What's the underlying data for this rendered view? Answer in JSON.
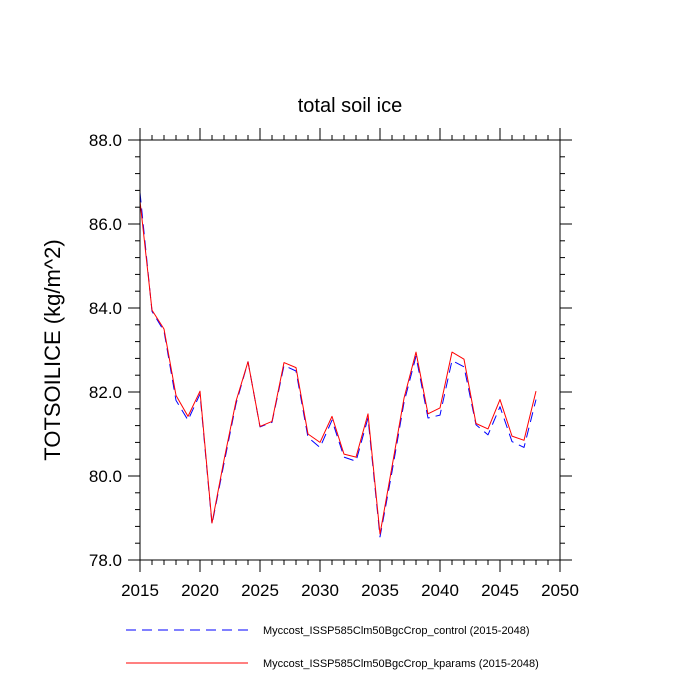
{
  "chart_data": {
    "type": "line",
    "title": "total soil ice",
    "xlabel": "",
    "ylabel": "TOTSOILICE  (kg/m^2)",
    "xlim": [
      2015,
      2050
    ],
    "ylim": [
      78.0,
      88.0
    ],
    "x_ticks": [
      2015,
      2020,
      2025,
      2030,
      2035,
      2040,
      2045,
      2050
    ],
    "x_tick_labels": [
      "2015",
      "2020",
      "2025",
      "2030",
      "2035",
      "2040",
      "2045",
      "2050"
    ],
    "y_ticks": [
      78.0,
      80.0,
      82.0,
      84.0,
      86.0,
      88.0
    ],
    "y_tick_labels": [
      "78.0",
      "80.0",
      "82.0",
      "84.0",
      "86.0",
      "88.0"
    ],
    "grid": false,
    "legend_position": "bottom",
    "x": [
      2015,
      2016,
      2017,
      2018,
      2019,
      2020,
      2021,
      2022,
      2023,
      2024,
      2025,
      2026,
      2027,
      2028,
      2029,
      2030,
      2031,
      2032,
      2033,
      2034,
      2035,
      2036,
      2037,
      2038,
      2039,
      2040,
      2041,
      2042,
      2043,
      2044,
      2045,
      2046,
      2047,
      2048
    ],
    "series": [
      {
        "name": "Myccost_ISSP585Clm50BgcCrop_control (2015-2048)",
        "color": "#0000ff",
        "dash": "dashed",
        "values": [
          86.75,
          83.92,
          83.45,
          81.8,
          81.33,
          81.95,
          78.85,
          80.3,
          81.72,
          82.72,
          81.17,
          81.28,
          82.63,
          82.5,
          80.92,
          80.68,
          81.33,
          80.45,
          80.35,
          81.38,
          78.55,
          80.1,
          81.75,
          82.85,
          81.38,
          81.45,
          82.75,
          82.6,
          81.22,
          80.98,
          81.65,
          80.82,
          80.68,
          81.82
        ]
      },
      {
        "name": "Myccost_ISSP585Clm50BgcCrop_kparams (2015-2048)",
        "color": "#ff0000",
        "dash": "solid",
        "values": [
          86.55,
          83.95,
          83.5,
          81.92,
          81.42,
          82.02,
          78.88,
          80.38,
          81.78,
          82.72,
          81.18,
          81.3,
          82.7,
          82.58,
          81.0,
          80.8,
          81.42,
          80.52,
          80.45,
          81.48,
          78.62,
          80.22,
          81.85,
          82.95,
          81.48,
          81.62,
          82.95,
          82.78,
          81.25,
          81.12,
          81.82,
          80.95,
          80.85,
          82.02
        ]
      }
    ]
  }
}
